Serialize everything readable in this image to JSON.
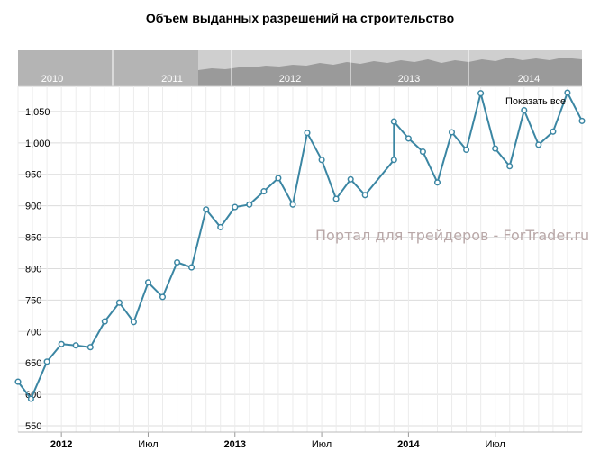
{
  "chart_data": {
    "type": "line",
    "title": "Объем выданных разрешений на строительство",
    "xlabel": "",
    "ylabel": "",
    "ylim": [
      540,
      1090
    ],
    "yticks": [
      "550",
      "600",
      "650",
      "700",
      "750",
      "800",
      "850",
      "900",
      "950",
      "1,000",
      "1,050"
    ],
    "x_labels": [
      {
        "text": "2012",
        "bold": true,
        "t": 3
      },
      {
        "text": "Июл",
        "bold": false,
        "t": 9
      },
      {
        "text": "2013",
        "bold": true,
        "t": 15
      },
      {
        "text": "Июл",
        "bold": false,
        "t": 21
      },
      {
        "text": "2014",
        "bold": true,
        "t": 27
      },
      {
        "text": "Июл",
        "bold": false,
        "t": 33
      }
    ],
    "series": [
      {
        "color": "#3b86a3",
        "points": [
          [
            0,
            620
          ],
          [
            0.9,
            593
          ],
          [
            2,
            652
          ],
          [
            3,
            680
          ],
          [
            4,
            678
          ],
          [
            5,
            675
          ],
          [
            6,
            716
          ],
          [
            7,
            746
          ],
          [
            8,
            715
          ],
          [
            9,
            778
          ],
          [
            10,
            755
          ],
          [
            11,
            810
          ],
          [
            12,
            802
          ],
          [
            13,
            894
          ],
          [
            14,
            866
          ],
          [
            15,
            898
          ],
          [
            16,
            902
          ],
          [
            17,
            923
          ],
          [
            18,
            944
          ],
          [
            19,
            902
          ],
          [
            20,
            1016
          ],
          [
            21,
            973
          ],
          [
            22,
            911
          ],
          [
            23,
            942
          ],
          [
            24,
            917
          ],
          [
            26,
            973
          ],
          [
            26,
            1034
          ],
          [
            27,
            1007
          ],
          [
            28,
            986
          ],
          [
            29,
            937
          ],
          [
            30,
            1017
          ],
          [
            31,
            989
          ],
          [
            32,
            1079
          ],
          [
            33,
            991
          ],
          [
            34,
            963
          ],
          [
            35,
            1052
          ],
          [
            36,
            997
          ],
          [
            37,
            1018
          ],
          [
            38,
            1080
          ],
          [
            39,
            1035
          ]
        ]
      }
    ]
  },
  "navigator": {
    "labels": [
      "2010",
      "2011",
      "2012",
      "2013",
      "2014"
    ]
  },
  "show_all_label": "Показать все",
  "watermark": "Портал для трейдеров - ForTrader.ru",
  "colors": {
    "line": "#3b86a3",
    "marker_fill": "#ffffff",
    "grid": "#dcdcdc",
    "nav_light": "#b4b4b4",
    "nav_dark": "#858585",
    "nav_area": "#d9d9d9"
  }
}
